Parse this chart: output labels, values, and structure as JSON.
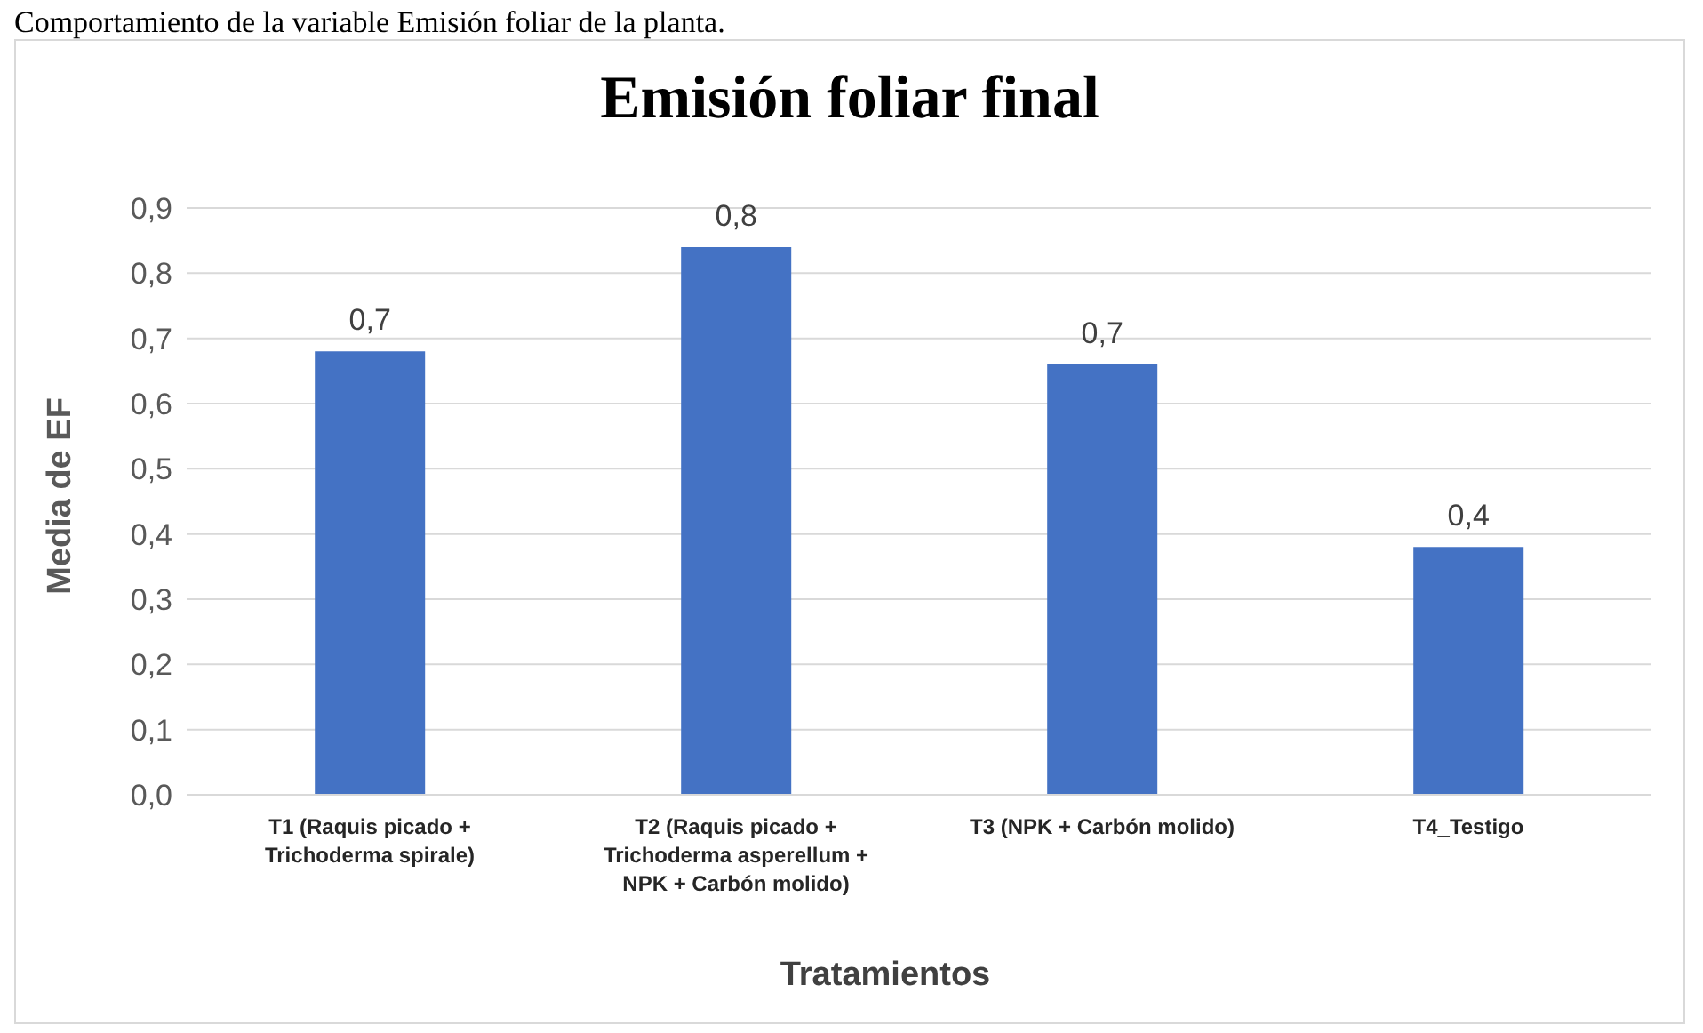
{
  "chart_data": {
    "type": "bar",
    "title": "Emisión foliar final",
    "xlabel": "Tratamientos",
    "ylabel": "Media de EF",
    "annotations": [
      "Comportamiento de la variable Emisión foliar de la planta."
    ],
    "categories": [
      "T1 (Raquis picado + Trichoderma spirale)",
      "T2 (Raquis picado + Trichoderma asperellum + NPK + Carbón molido)",
      "T3 (NPK + Carbón molido)",
      "T4_Testigo"
    ],
    "values": [
      0.68,
      0.84,
      0.66,
      0.38
    ],
    "color": "#4472c4",
    "value_labels": [
      "0,7",
      "0,8",
      "0,7",
      "0,4"
    ],
    "ylim": [
      0,
      0.9
    ],
    "yticks": [
      {
        "value": 0,
        "label": "0,0"
      },
      {
        "value": 0.1,
        "label": "0,1"
      },
      {
        "value": 0.2,
        "label": "0,2"
      },
      {
        "value": 0.3,
        "label": "0,3"
      },
      {
        "value": 0.4,
        "label": "0,4"
      },
      {
        "value": 0.5,
        "label": "0,5"
      },
      {
        "value": 0.6,
        "label": "0,6"
      },
      {
        "value": 0.7,
        "label": "0,7"
      },
      {
        "value": 0.8,
        "label": "0,8"
      },
      {
        "value": 0.9,
        "label": "0,9"
      }
    ],
    "grid": "y",
    "legend": false
  }
}
